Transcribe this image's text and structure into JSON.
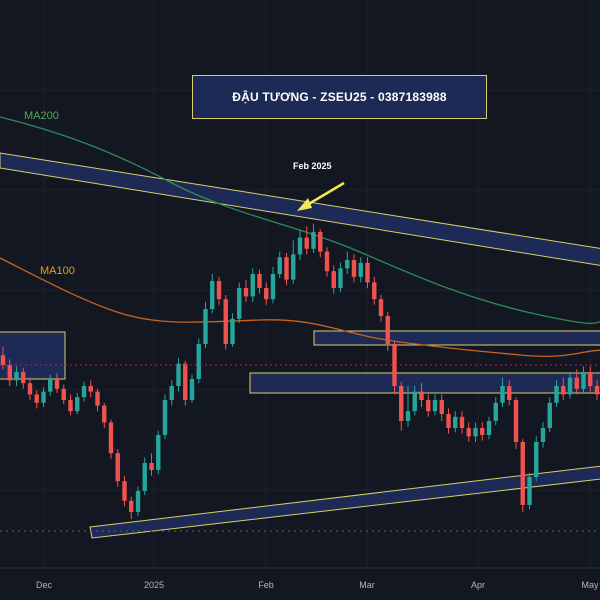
{
  "chart_data": {
    "type": "candlestick",
    "title": "ĐẬU TƯƠNG - ZSEU25 - 0387183988",
    "annotation": "Feb 2025",
    "x_labels": [
      "Dec",
      "2025",
      "Feb",
      "Mar",
      "Apr",
      "May"
    ],
    "indicators": [
      {
        "name": "MA200",
        "color": "#2e8b57",
        "label_color": "#4caf50"
      },
      {
        "name": "MA100",
        "color": "#c8641e",
        "label_color": "#ff9800"
      }
    ],
    "colors": {
      "background": "#131722",
      "up": "#26a69a",
      "down": "#ef5350",
      "zone_fill": "#1c2a55",
      "zone_stroke": "#d8cf6a",
      "arrow": "#f2e94e",
      "axis_text": "#b2b5be"
    },
    "candles": [
      [
        1052,
        1045,
        1058,
        1042
      ],
      [
        1045,
        1034,
        1049,
        1030
      ],
      [
        1034,
        1040,
        1044,
        1030
      ],
      [
        1040,
        1032,
        1043,
        1028
      ],
      [
        1032,
        1024,
        1036,
        1020
      ],
      [
        1024,
        1018,
        1027,
        1014
      ],
      [
        1018,
        1026,
        1029,
        1015
      ],
      [
        1026,
        1035,
        1038,
        1023
      ],
      [
        1035,
        1028,
        1039,
        1025
      ],
      [
        1028,
        1020,
        1031,
        1017
      ],
      [
        1020,
        1012,
        1024,
        1009
      ],
      [
        1012,
        1022,
        1025,
        1010
      ],
      [
        1022,
        1030,
        1033,
        1019
      ],
      [
        1030,
        1026,
        1034,
        1022
      ],
      [
        1026,
        1016,
        1028,
        1012
      ],
      [
        1016,
        1004,
        1018,
        1000
      ],
      [
        1004,
        982,
        1006,
        978
      ],
      [
        982,
        962,
        985,
        958
      ],
      [
        962,
        948,
        966,
        944
      ],
      [
        948,
        940,
        951,
        935
      ],
      [
        940,
        955,
        958,
        937
      ],
      [
        955,
        975,
        979,
        952
      ],
      [
        975,
        970,
        982,
        966
      ],
      [
        970,
        995,
        998,
        967
      ],
      [
        995,
        1020,
        1024,
        992
      ],
      [
        1020,
        1030,
        1034,
        1016
      ],
      [
        1030,
        1046,
        1050,
        1026
      ],
      [
        1046,
        1020,
        1048,
        1016
      ],
      [
        1020,
        1035,
        1038,
        1018
      ],
      [
        1035,
        1060,
        1064,
        1032
      ],
      [
        1060,
        1085,
        1090,
        1057
      ],
      [
        1085,
        1105,
        1110,
        1082
      ],
      [
        1105,
        1092,
        1108,
        1088
      ],
      [
        1092,
        1060,
        1095,
        1056
      ],
      [
        1060,
        1078,
        1082,
        1058
      ],
      [
        1078,
        1100,
        1104,
        1075
      ],
      [
        1100,
        1094,
        1106,
        1090
      ],
      [
        1094,
        1110,
        1114,
        1090
      ],
      [
        1110,
        1100,
        1113,
        1096
      ],
      [
        1100,
        1092,
        1104,
        1088
      ],
      [
        1092,
        1110,
        1115,
        1089
      ],
      [
        1110,
        1122,
        1126,
        1107
      ],
      [
        1122,
        1106,
        1125,
        1102
      ],
      [
        1106,
        1124,
        1134,
        1103
      ],
      [
        1124,
        1136,
        1142,
        1120
      ],
      [
        1136,
        1128,
        1144,
        1124
      ],
      [
        1128,
        1140,
        1146,
        1125
      ],
      [
        1140,
        1126,
        1142,
        1122
      ],
      [
        1126,
        1112,
        1129,
        1108
      ],
      [
        1112,
        1100,
        1116,
        1096
      ],
      [
        1100,
        1114,
        1118,
        1097
      ],
      [
        1114,
        1120,
        1126,
        1110
      ],
      [
        1120,
        1108,
        1124,
        1104
      ],
      [
        1108,
        1118,
        1122,
        1104
      ],
      [
        1118,
        1104,
        1122,
        1100
      ],
      [
        1104,
        1092,
        1108,
        1088
      ],
      [
        1092,
        1080,
        1095,
        1076
      ],
      [
        1080,
        1060,
        1083,
        1055
      ],
      [
        1060,
        1030,
        1062,
        1024
      ],
      [
        1030,
        1005,
        1033,
        998
      ],
      [
        1005,
        1012,
        1030,
        1001
      ],
      [
        1012,
        1026,
        1030,
        1009
      ],
      [
        1026,
        1020,
        1032,
        1015
      ],
      [
        1020,
        1012,
        1024,
        1008
      ],
      [
        1012,
        1020,
        1024,
        1009
      ],
      [
        1020,
        1010,
        1024,
        1005
      ],
      [
        1010,
        1000,
        1014,
        996
      ],
      [
        1000,
        1008,
        1012,
        997
      ],
      [
        1008,
        1000,
        1012,
        996
      ],
      [
        1000,
        994,
        1004,
        990
      ],
      [
        994,
        1000,
        1004,
        990
      ],
      [
        1000,
        995,
        1004,
        991
      ],
      [
        995,
        1005,
        1008,
        992
      ],
      [
        1005,
        1018,
        1022,
        1002
      ],
      [
        1018,
        1030,
        1036,
        1015
      ],
      [
        1030,
        1020,
        1034,
        1016
      ],
      [
        1020,
        990,
        1022,
        985
      ],
      [
        990,
        945,
        992,
        940
      ],
      [
        945,
        965,
        968,
        942
      ],
      [
        965,
        990,
        994,
        962
      ],
      [
        990,
        1000,
        1004,
        986
      ],
      [
        1000,
        1018,
        1022,
        997
      ],
      [
        1018,
        1030,
        1034,
        1015
      ],
      [
        1030,
        1024,
        1036,
        1020
      ],
      [
        1024,
        1036,
        1040,
        1021
      ],
      [
        1036,
        1028,
        1042,
        1024
      ],
      [
        1028,
        1040,
        1044,
        1025
      ],
      [
        1040,
        1030,
        1044,
        1026
      ],
      [
        1030,
        1024,
        1034,
        1020
      ],
      [
        1024,
        1034,
        1046,
        1021
      ]
    ]
  }
}
